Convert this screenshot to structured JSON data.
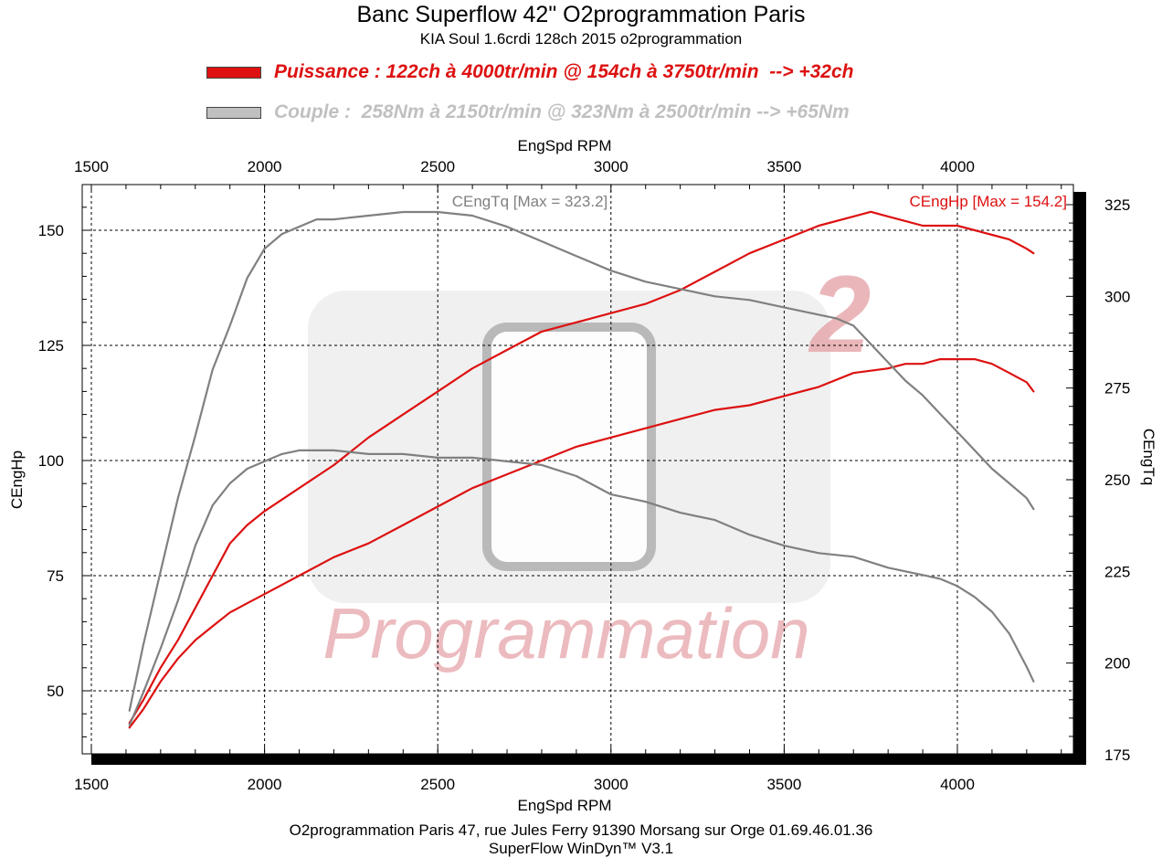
{
  "header": {
    "title": "Banc Superflow 42\" O2programmation Paris",
    "subtitle": "KIA Soul 1.6crdi 128ch 2015 o2programmation"
  },
  "legend": {
    "power_text": "Puissance : 122ch à 4000tr/min @ 154ch à 3750tr/min  --> +32ch",
    "torque_text": "Couple :  258Nm à 2150tr/min @ 323Nm à 2500tr/min --> +65Nm"
  },
  "footer": {
    "line1": "O2programmation Paris 47, rue Jules Ferry 91390 Morsang sur Orge 01.69.46.01.36",
    "line2": "SuperFlow WinDyn™ V3.1"
  },
  "watermark": {
    "text": "Programmation",
    "logo_glyph": "2"
  },
  "colors": {
    "power": "#dd1111",
    "torque": "#808080",
    "torque_legend": "#c0c0c0",
    "watermark_text": "#e6a5aa"
  },
  "chart_data": {
    "type": "line",
    "xlabel": "EngSpd RPM",
    "ylabel_left": "CEngHp",
    "ylabel_right": "CEngTq",
    "xlim": [
      1500,
      4300
    ],
    "ylim_left": [
      40,
      160
    ],
    "ylim_right": [
      175,
      325
    ],
    "x_ticks": [
      1500,
      2000,
      2500,
      3000,
      3500,
      4000
    ],
    "y_left_ticks": [
      50,
      75,
      100,
      125,
      150
    ],
    "y_right_ticks": [
      175,
      200,
      225,
      250,
      275,
      300,
      325
    ],
    "annotations": {
      "torque_max": "CEngTq [Max = 323.2]",
      "power_max": "CEngHp [Max = 154.2]"
    },
    "series": [
      {
        "name": "CEngHp",
        "variant": "modified",
        "axis": "left",
        "color": "#dd1111",
        "x": [
          1610,
          1650,
          1700,
          1750,
          1800,
          1850,
          1900,
          1950,
          2000,
          2100,
          2200,
          2300,
          2400,
          2500,
          2600,
          2700,
          2800,
          2900,
          3000,
          3100,
          3200,
          3300,
          3400,
          3500,
          3600,
          3700,
          3750,
          3800,
          3850,
          3900,
          3950,
          4000,
          4050,
          4100,
          4150,
          4200,
          4220
        ],
        "y": [
          43,
          48,
          55,
          61,
          68,
          75,
          82,
          86,
          89,
          94,
          99,
          105,
          110,
          115,
          120,
          124,
          128,
          130,
          132,
          134,
          137,
          141,
          145,
          148,
          151,
          153,
          154,
          153,
          152,
          151,
          151,
          151,
          150,
          149,
          148,
          146,
          145
        ]
      },
      {
        "name": "CEngHp",
        "variant": "stock",
        "axis": "left",
        "color": "#dd1111",
        "x": [
          1610,
          1650,
          1700,
          1750,
          1800,
          1850,
          1900,
          1950,
          2000,
          2100,
          2200,
          2300,
          2400,
          2500,
          2600,
          2700,
          2800,
          2900,
          3000,
          3100,
          3200,
          3300,
          3400,
          3500,
          3600,
          3700,
          3800,
          3850,
          3900,
          3950,
          4000,
          4050,
          4100,
          4150,
          4200,
          4220
        ],
        "y": [
          42,
          46,
          52,
          57,
          61,
          64,
          67,
          69,
          71,
          75,
          79,
          82,
          86,
          90,
          94,
          97,
          100,
          103,
          105,
          107,
          109,
          111,
          112,
          114,
          116,
          119,
          120,
          121,
          121,
          122,
          122,
          122,
          121,
          119,
          117,
          115
        ]
      },
      {
        "name": "CEngTq",
        "variant": "modified",
        "axis": "right",
        "color": "#808080",
        "x": [
          1610,
          1650,
          1700,
          1750,
          1800,
          1850,
          1900,
          1950,
          2000,
          2050,
          2100,
          2150,
          2200,
          2300,
          2400,
          2500,
          2600,
          2700,
          2800,
          2900,
          3000,
          3100,
          3200,
          3300,
          3400,
          3500,
          3600,
          3650,
          3700,
          3750,
          3800,
          3850,
          3900,
          3950,
          4000,
          4050,
          4100,
          4150,
          4200,
          4220
        ],
        "y": [
          187,
          205,
          225,
          245,
          262,
          280,
          292,
          305,
          313,
          317,
          319,
          321,
          321,
          322,
          323,
          323,
          322,
          319,
          315,
          311,
          307,
          304,
          302,
          300,
          299,
          297,
          295,
          294,
          292,
          287,
          282,
          277,
          273,
          268,
          263,
          258,
          253,
          249,
          245,
          242
        ]
      },
      {
        "name": "CEngTq",
        "variant": "stock",
        "axis": "right",
        "color": "#808080",
        "x": [
          1610,
          1650,
          1700,
          1750,
          1800,
          1850,
          1900,
          1950,
          2000,
          2050,
          2100,
          2150,
          2200,
          2300,
          2400,
          2500,
          2600,
          2700,
          2800,
          2900,
          3000,
          3100,
          3200,
          3300,
          3400,
          3500,
          3600,
          3700,
          3800,
          3850,
          3900,
          3950,
          4000,
          4050,
          4100,
          4150,
          4200,
          4220
        ],
        "y": [
          183,
          192,
          204,
          217,
          232,
          243,
          249,
          253,
          255,
          257,
          258,
          258,
          258,
          257,
          257,
          256,
          256,
          255,
          254,
          251,
          246,
          244,
          241,
          239,
          235,
          232,
          230,
          229,
          226,
          225,
          224,
          223,
          221,
          218,
          214,
          208,
          199,
          195
        ]
      }
    ]
  }
}
